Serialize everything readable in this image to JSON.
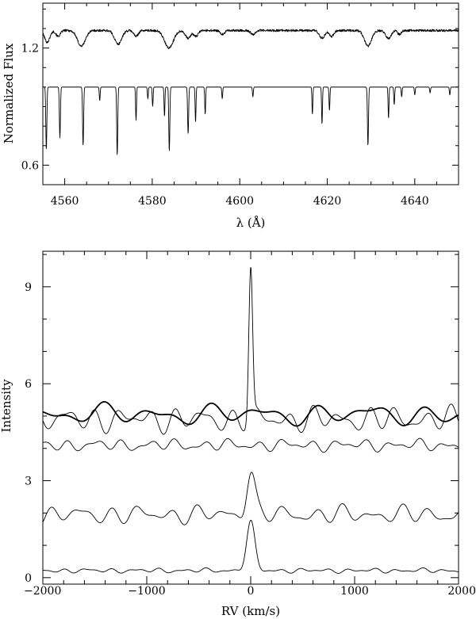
{
  "chart_data": [
    {
      "type": "line",
      "title": "",
      "xlabel": "λ (Å)",
      "ylabel": "Normalized Flux",
      "xlim": [
        4555,
        4650
      ],
      "ylim": [
        0.5,
        1.43
      ],
      "xticks": [
        4560,
        4580,
        4600,
        4620,
        4640
      ],
      "yticks": [
        0.6,
        1.2
      ],
      "grid": false,
      "legend": "none",
      "series": [
        {
          "description": "observed spectrum (upper)",
          "continuum": 1.29,
          "noise": 0.006,
          "lines": [
            [
              4556.0,
              0.06,
              0.6
            ],
            [
              4558.5,
              0.03,
              0.5
            ],
            [
              4563.8,
              0.08,
              0.9
            ],
            [
              4572.2,
              0.07,
              0.8
            ],
            [
              4576.3,
              0.03,
              0.5
            ],
            [
              4583.8,
              0.09,
              1.0
            ],
            [
              4588.2,
              0.04,
              0.6
            ],
            [
              4590.0,
              0.03,
              0.5
            ],
            [
              4596.0,
              0.02,
              0.5
            ],
            [
              4603.0,
              0.02,
              0.5
            ],
            [
              4618.8,
              0.04,
              0.6
            ],
            [
              4621.0,
              0.03,
              0.5
            ],
            [
              4629.3,
              0.08,
              0.8
            ],
            [
              4634.0,
              0.04,
              0.6
            ],
            [
              4636.5,
              0.02,
              0.4
            ]
          ]
        },
        {
          "description": "template spectrum (lower)",
          "continuum": 1.0,
          "noise": 0.0,
          "lines": [
            [
              4555.8,
              0.32,
              0.12
            ],
            [
              4558.9,
              0.26,
              0.12
            ],
            [
              4564.2,
              0.3,
              0.12
            ],
            [
              4568.0,
              0.07,
              0.1
            ],
            [
              4572.0,
              0.35,
              0.12
            ],
            [
              4576.3,
              0.17,
              0.1
            ],
            [
              4579.0,
              0.06,
              0.1
            ],
            [
              4580.1,
              0.1,
              0.1
            ],
            [
              4582.8,
              0.15,
              0.1
            ],
            [
              4583.9,
              0.33,
              0.12
            ],
            [
              4588.2,
              0.24,
              0.12
            ],
            [
              4589.9,
              0.18,
              0.1
            ],
            [
              4592.1,
              0.14,
              0.1
            ],
            [
              4596.0,
              0.06,
              0.1
            ],
            [
              4603.0,
              0.05,
              0.1
            ],
            [
              4616.6,
              0.14,
              0.1
            ],
            [
              4618.8,
              0.19,
              0.1
            ],
            [
              4620.5,
              0.12,
              0.1
            ],
            [
              4629.3,
              0.3,
              0.12
            ],
            [
              4634.0,
              0.16,
              0.1
            ],
            [
              4635.3,
              0.09,
              0.1
            ],
            [
              4637.0,
              0.05,
              0.1
            ],
            [
              4640.0,
              0.04,
              0.1
            ],
            [
              4643.5,
              0.03,
              0.1
            ],
            [
              4648.0,
              0.04,
              0.1
            ]
          ]
        }
      ]
    },
    {
      "type": "line",
      "title": "",
      "xlabel": "RV    (km/s)",
      "ylabel": "Intensity",
      "xlim": [
        -2000,
        2000
      ],
      "ylim": [
        -0.2,
        10.1
      ],
      "xticks": [
        -2000,
        -1000,
        0,
        1000,
        2000
      ],
      "xtick_labels": [
        "−2000",
        "−1000",
        "0",
        "1000",
        "2000"
      ],
      "yticks": [
        0,
        3,
        6,
        9
      ],
      "grid": false,
      "legend": "none",
      "series": [
        {
          "description": "thin oscillating curve with central spike",
          "base": 4.9,
          "ripple": 0.38,
          "wave_periods": [
            265,
            190
          ],
          "peak": {
            "center": 0,
            "height": 4.6,
            "width": 18
          }
        },
        {
          "description": "bold smooth curve",
          "base": 5.05,
          "ripple": 0.32,
          "wave_periods": [
            520,
            340
          ],
          "peak": null
        },
        {
          "description": "curve near 4",
          "base": 4.1,
          "ripple": 0.18,
          "wave_periods": [
            260,
            170
          ],
          "peak": null
        },
        {
          "description": "curve near 2 with peak",
          "base": 1.95,
          "ripple": 0.28,
          "wave_periods": [
            280,
            200
          ],
          "peak": {
            "center": 0,
            "height": 1.35,
            "width": 40
          }
        },
        {
          "description": "bottom curve with peak",
          "base": 0.22,
          "ripple": 0.07,
          "wave_periods": [
            230,
            150
          ],
          "peak": {
            "center": 0,
            "height": 1.5,
            "width": 40
          }
        }
      ]
    }
  ]
}
